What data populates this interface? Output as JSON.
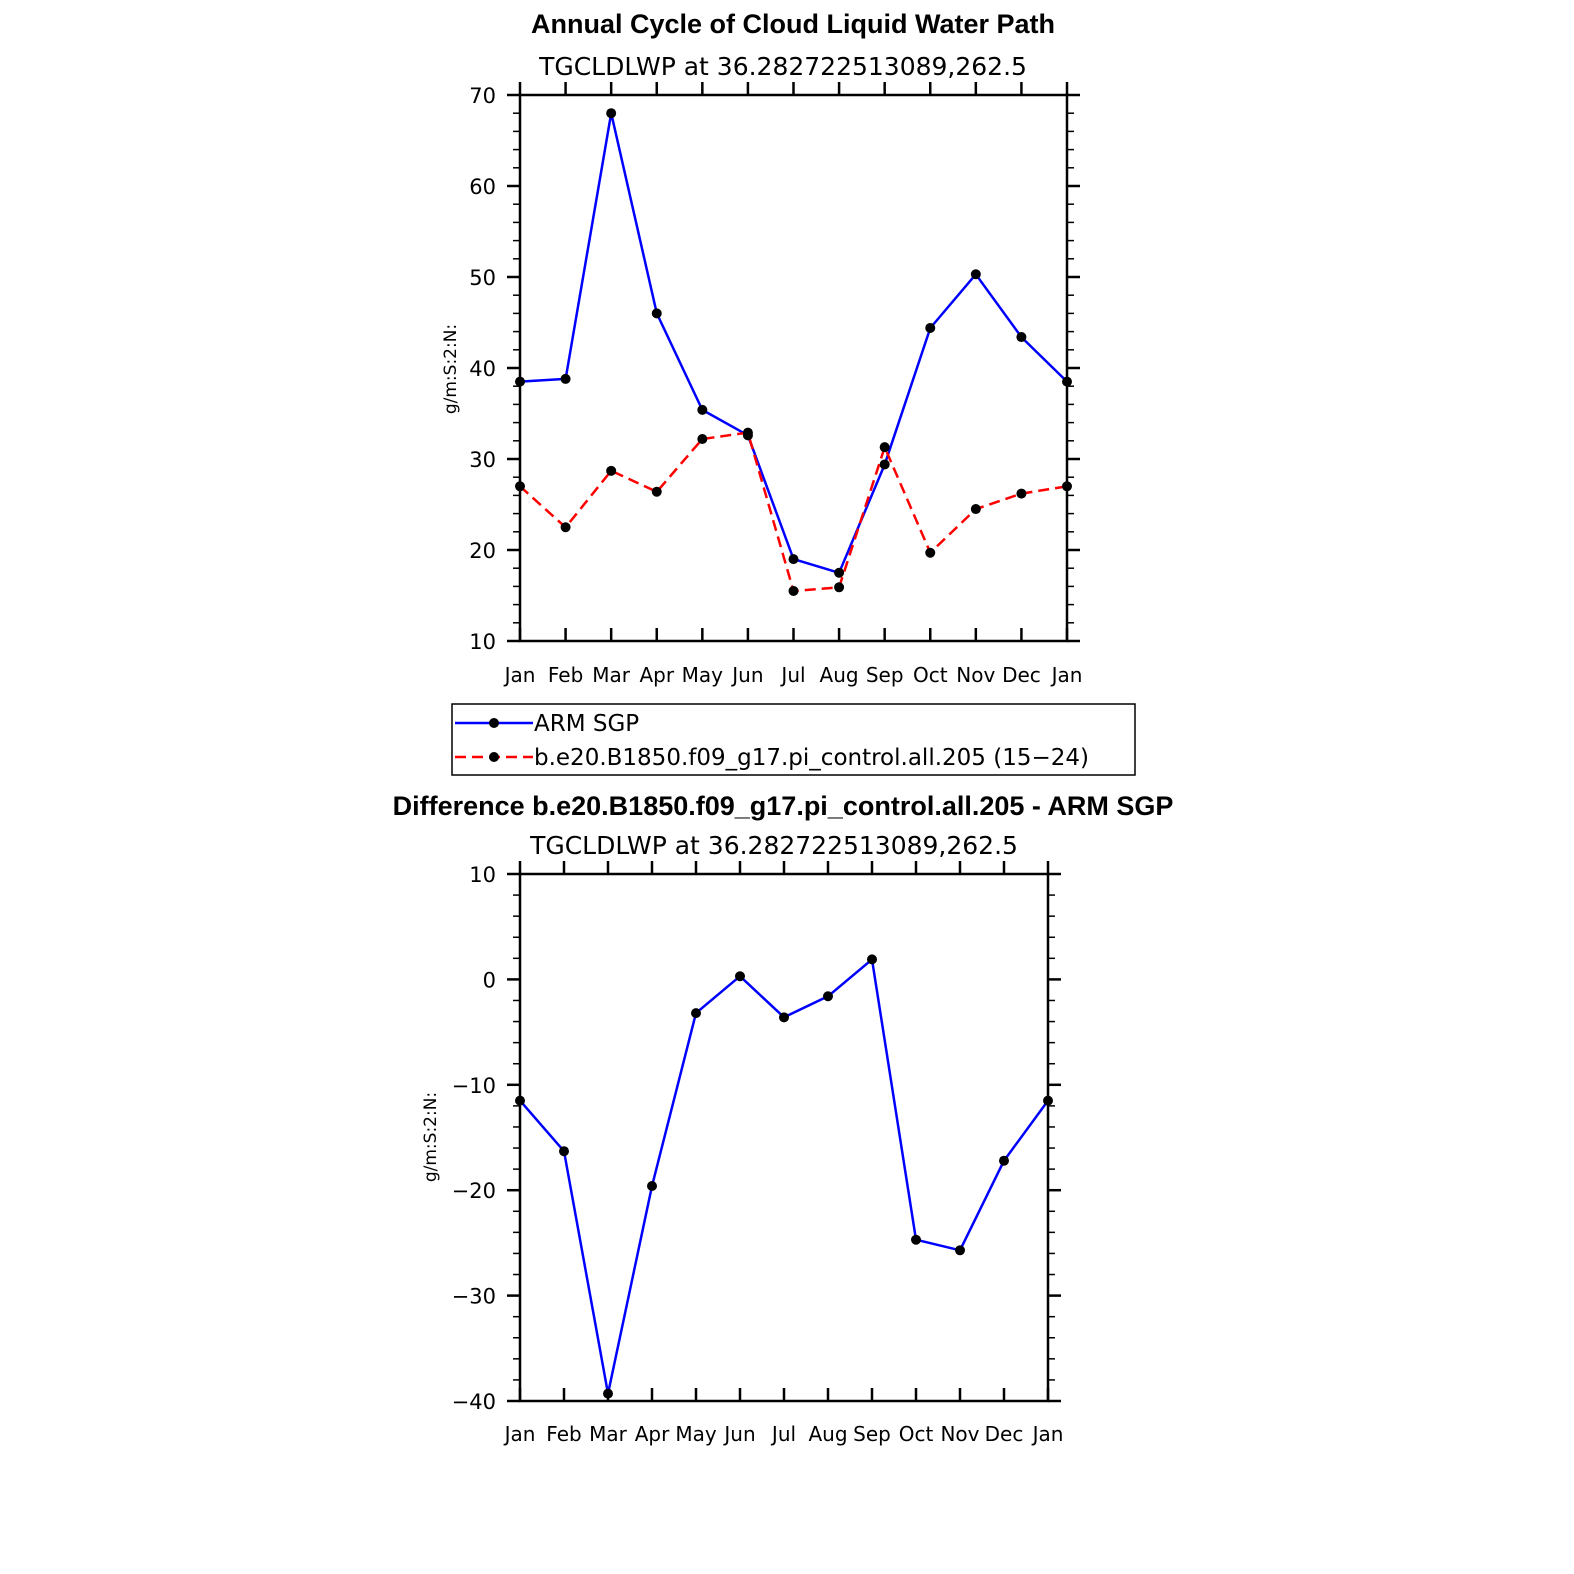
{
  "colors": {
    "arm": "#0000ff",
    "model": "#ff0000",
    "marker": "#000000",
    "axis": "#000000"
  },
  "chart_data": [
    {
      "type": "line",
      "title": "Annual Cycle of Cloud Liquid Water Path",
      "subtitle": "TGCLDLWP  at  36.282722513089,262.5",
      "ylabel": "g/m:S:2:N:",
      "xlabel": "",
      "ylim": [
        10,
        70
      ],
      "yticks": [
        "70",
        "60",
        "50",
        "40",
        "30",
        "20",
        "10"
      ],
      "ytick_values": [
        70,
        60,
        50,
        40,
        30,
        20,
        10
      ],
      "categories": [
        "Jan",
        "Feb",
        "Mar",
        "Apr",
        "May",
        "Jun",
        "Jul",
        "Aug",
        "Sep",
        "Oct",
        "Nov",
        "Dec",
        "Jan"
      ],
      "series": [
        {
          "name": "ARM SGP",
          "style": "solid",
          "color": "#0000ff",
          "values": [
            38.5,
            38.8,
            68.0,
            46.0,
            35.4,
            32.6,
            19.0,
            17.5,
            29.4,
            44.4,
            50.3,
            43.4,
            38.5
          ]
        },
        {
          "name": "b.e20.B1850.f09_g17.pi_control.all.205 (15−24)",
          "style": "dashed",
          "color": "#ff0000",
          "values": [
            27.0,
            22.5,
            28.7,
            26.4,
            32.2,
            32.9,
            15.5,
            15.9,
            31.3,
            19.7,
            24.5,
            26.2,
            27.0
          ]
        }
      ],
      "legend": {
        "placement": "bottom",
        "entries": [
          "ARM SGP",
          "b.e20.B1850.f09_g17.pi_control.all.205 (15−24)"
        ]
      }
    },
    {
      "type": "line",
      "title": "Difference b.e20.B1850.f09_g17.pi_control.all.205 - ARM SGP",
      "subtitle": "TGCLDLWP  at  36.282722513089,262.5",
      "ylabel": "g/m:S:2:N:",
      "xlabel": "",
      "ylim": [
        -40,
        10
      ],
      "yticks": [
        "10",
        "0",
        "−10",
        "−20",
        "−30",
        "−40"
      ],
      "ytick_values": [
        10,
        0,
        -10,
        -20,
        -30,
        -40
      ],
      "categories": [
        "Jan",
        "Feb",
        "Mar",
        "Apr",
        "May",
        "Jun",
        "Jul",
        "Aug",
        "Sep",
        "Oct",
        "Nov",
        "Dec",
        "Jan"
      ],
      "series": [
        {
          "name": "Difference",
          "style": "solid",
          "color": "#0000ff",
          "values": [
            -11.5,
            -16.3,
            -39.3,
            -19.6,
            -3.2,
            0.3,
            -3.6,
            -1.6,
            1.9,
            -24.7,
            -25.7,
            -17.2,
            -11.5
          ]
        }
      ]
    }
  ]
}
